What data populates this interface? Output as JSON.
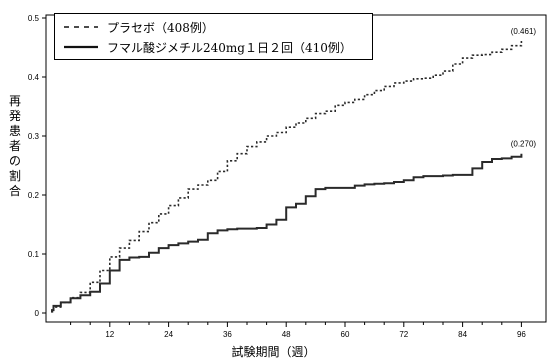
{
  "chart_data": {
    "type": "line",
    "title": "",
    "xlabel": "試験期間（週）",
    "ylabel": "再発患者の割合",
    "xlim": [
      0,
      100
    ],
    "ylim": [
      0,
      0.5
    ],
    "x_ticks": [
      12,
      24,
      36,
      48,
      60,
      72,
      84,
      96
    ],
    "y_ticks": [
      "0",
      "0.1",
      "0.2",
      "0.3",
      "0.4",
      "0.5"
    ],
    "legend_position": "top-left",
    "grid": false,
    "series": [
      {
        "name": "プラセボ（408例）",
        "style": "dashed",
        "color": "#333333",
        "end_label": "(0.461)",
        "points": [
          [
            0,
            0.002
          ],
          [
            0.5,
            0.01
          ],
          [
            2,
            0.018
          ],
          [
            4,
            0.026
          ],
          [
            6,
            0.035
          ],
          [
            8,
            0.052
          ],
          [
            10,
            0.072
          ],
          [
            12,
            0.095
          ],
          [
            14,
            0.11
          ],
          [
            16,
            0.123
          ],
          [
            18,
            0.138
          ],
          [
            20,
            0.153
          ],
          [
            22,
            0.168
          ],
          [
            24,
            0.182
          ],
          [
            26,
            0.195
          ],
          [
            28,
            0.21
          ],
          [
            30,
            0.217
          ],
          [
            32,
            0.225
          ],
          [
            34,
            0.24
          ],
          [
            36,
            0.258
          ],
          [
            38,
            0.27
          ],
          [
            40,
            0.282
          ],
          [
            42,
            0.29
          ],
          [
            44,
            0.3
          ],
          [
            46,
            0.306
          ],
          [
            48,
            0.315
          ],
          [
            50,
            0.322
          ],
          [
            52,
            0.33
          ],
          [
            54,
            0.338
          ],
          [
            56,
            0.342
          ],
          [
            58,
            0.352
          ],
          [
            60,
            0.357
          ],
          [
            62,
            0.362
          ],
          [
            64,
            0.37
          ],
          [
            66,
            0.377
          ],
          [
            68,
            0.384
          ],
          [
            70,
            0.39
          ],
          [
            72,
            0.393
          ],
          [
            74,
            0.397
          ],
          [
            76,
            0.398
          ],
          [
            78,
            0.403
          ],
          [
            80,
            0.41
          ],
          [
            82,
            0.422
          ],
          [
            84,
            0.432
          ],
          [
            86,
            0.437
          ],
          [
            88,
            0.438
          ],
          [
            90,
            0.442
          ],
          [
            92,
            0.447
          ],
          [
            94,
            0.453
          ],
          [
            96,
            0.461
          ]
        ]
      },
      {
        "name": "フマル酸ジメチル240mg１日２回（410例）",
        "style": "solid",
        "color": "#333333",
        "end_label": "(0.270)",
        "points": [
          [
            0,
            0.005
          ],
          [
            0.5,
            0.012
          ],
          [
            2,
            0.018
          ],
          [
            4,
            0.025
          ],
          [
            6,
            0.03
          ],
          [
            8,
            0.036
          ],
          [
            10,
            0.05
          ],
          [
            12,
            0.072
          ],
          [
            14,
            0.09
          ],
          [
            16,
            0.094
          ],
          [
            18,
            0.095
          ],
          [
            20,
            0.102
          ],
          [
            22,
            0.11
          ],
          [
            24,
            0.115
          ],
          [
            26,
            0.118
          ],
          [
            28,
            0.121
          ],
          [
            30,
            0.124
          ],
          [
            32,
            0.135
          ],
          [
            34,
            0.14
          ],
          [
            36,
            0.142
          ],
          [
            38,
            0.143
          ],
          [
            40,
            0.143
          ],
          [
            42,
            0.144
          ],
          [
            44,
            0.15
          ],
          [
            46,
            0.158
          ],
          [
            48,
            0.179
          ],
          [
            50,
            0.185
          ],
          [
            52,
            0.198
          ],
          [
            54,
            0.21
          ],
          [
            56,
            0.212
          ],
          [
            58,
            0.212
          ],
          [
            60,
            0.212
          ],
          [
            62,
            0.216
          ],
          [
            64,
            0.218
          ],
          [
            66,
            0.219
          ],
          [
            68,
            0.22
          ],
          [
            70,
            0.222
          ],
          [
            72,
            0.225
          ],
          [
            74,
            0.23
          ],
          [
            76,
            0.232
          ],
          [
            78,
            0.232
          ],
          [
            80,
            0.233
          ],
          [
            82,
            0.234
          ],
          [
            84,
            0.234
          ],
          [
            86,
            0.245
          ],
          [
            88,
            0.256
          ],
          [
            90,
            0.261
          ],
          [
            92,
            0.262
          ],
          [
            94,
            0.265
          ],
          [
            96,
            0.27
          ]
        ]
      }
    ]
  }
}
